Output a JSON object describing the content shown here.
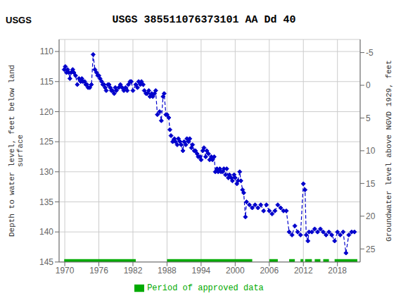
{
  "chart_data": {
    "type": "line",
    "title": "USGS 385511076373101 AA Dd  40",
    "annotations": [
      "USGS"
    ],
    "ylabel": "Depth to water level, feet below land\nsurface",
    "y2label": "Groundwater level above NGVD 1929, feet",
    "ylim": [
      145,
      108
    ],
    "yticks": [
      110,
      115,
      120,
      125,
      130,
      135,
      140,
      145
    ],
    "y2lim": [
      27,
      -7
    ],
    "y2ticks": [
      25,
      20,
      15,
      10,
      5,
      0,
      -5
    ],
    "xlim": [
      1969,
      2022
    ],
    "xticks": [
      1970,
      1976,
      1982,
      1988,
      1994,
      2000,
      2006,
      2012,
      2018
    ],
    "grid": true,
    "legend": "bottom",
    "series": [
      {
        "type": "line",
        "color": "#0000cc",
        "marker": "diamond",
        "line_style": "dashed",
        "x": [
          1969.9,
          1970.1,
          1970.3,
          1970.5,
          1970.7,
          1970.9,
          1971.1,
          1971.4,
          1971.6,
          1971.9,
          1972.2,
          1972.5,
          1972.8,
          1973.0,
          1973.2,
          1973.5,
          1973.7,
          1973.9,
          1974.1,
          1974.4,
          1974.7,
          1975.0,
          1975.3,
          1975.6,
          1975.8,
          1976.0,
          1976.2,
          1976.5,
          1976.7,
          1976.9,
          1977.1,
          1977.3,
          1977.6,
          1977.8,
          1978.0,
          1978.2,
          1978.4,
          1978.7,
          1978.9,
          1979.1,
          1979.5,
          1979.8,
          1980.1,
          1980.4,
          1980.7,
          1981.0,
          1981.2,
          1981.5,
          1981.7,
          1982.0,
          1982.5,
          1982.8,
          1983.0,
          1983.3,
          1983.5,
          1983.8,
          1984.0,
          1984.3,
          1984.5,
          1984.8,
          1985.0,
          1985.3,
          1985.5,
          1985.8,
          1986.0,
          1986.3,
          1986.7,
          1987.0,
          1987.3,
          1987.5,
          1987.8,
          1988.0,
          1988.3,
          1988.5,
          1988.7,
          1989.0,
          1989.3,
          1989.5,
          1989.8,
          1990.0,
          1990.3,
          1990.5,
          1990.8,
          1991.0,
          1991.3,
          1991.5,
          1991.8,
          1992.0,
          1992.3,
          1992.5,
          1992.8,
          1993.0,
          1993.3,
          1993.5,
          1993.8,
          1994.0,
          1994.3,
          1994.5,
          1994.8,
          1995.0,
          1995.3,
          1995.5,
          1995.8,
          1996.0,
          1996.3,
          1996.5,
          1996.8,
          1997.0,
          1997.3,
          1997.5,
          1997.8,
          1998.0,
          1998.3,
          1998.5,
          1998.8,
          1999.0,
          1999.3,
          1999.5,
          1999.8,
          2000.0,
          2000.3,
          2000.5,
          2000.8,
          2001.0,
          2001.3,
          2001.5,
          2001.8,
          2002.0,
          2002.5,
          2003.0,
          2003.5,
          2004.0,
          2004.5,
          2005.0,
          2005.5,
          2006.0,
          2006.5,
          2007.0,
          2007.5,
          2008.0,
          2008.5,
          2009.0,
          2009.5,
          2010.0,
          2010.5,
          2011.0,
          2011.5,
          2012.0,
          2012.3,
          2012.5,
          2012.8,
          2013.0,
          2013.5,
          2014.0,
          2014.5,
          2015.0,
          2015.5,
          2016.0,
          2016.5,
          2017.0,
          2017.5,
          2018.0,
          2018.5,
          2019.0,
          2019.5,
          2020.0,
          2020.5,
          2021.0
        ],
        "values": [
          113.0,
          112.5,
          113.5,
          113.0,
          113.5,
          114.5,
          113.5,
          113.0,
          113.5,
          114.0,
          115.5,
          114.5,
          115.0,
          114.5,
          115.0,
          115.0,
          115.5,
          115.5,
          116.0,
          116.0,
          115.5,
          110.5,
          113.0,
          113.5,
          114.0,
          114.0,
          114.5,
          115.0,
          115.5,
          115.5,
          116.0,
          116.5,
          115.5,
          115.5,
          116.0,
          116.5,
          116.5,
          117.0,
          116.0,
          116.5,
          116.0,
          115.5,
          116.0,
          116.5,
          116.0,
          116.5,
          115.5,
          115.0,
          115.0,
          116.5,
          115.5,
          116.0,
          115.0,
          115.5,
          115.0,
          115.5,
          116.5,
          117.0,
          117.0,
          116.5,
          117.5,
          117.0,
          117.5,
          117.0,
          116.5,
          120.5,
          120.0,
          121.5,
          117.5,
          117.0,
          120.5,
          120.5,
          121.0,
          123.0,
          124.0,
          125.0,
          124.5,
          125.0,
          125.5,
          124.5,
          125.0,
          125.5,
          126.5,
          125.0,
          125.5,
          124.5,
          125.0,
          124.5,
          126.0,
          125.5,
          126.5,
          126.5,
          127.0,
          127.5,
          127.5,
          128.0,
          126.5,
          126.0,
          127.5,
          126.5,
          127.0,
          128.0,
          127.5,
          128.0,
          127.5,
          130.0,
          129.5,
          130.0,
          129.5,
          130.0,
          130.0,
          129.5,
          130.5,
          129.5,
          131.0,
          130.5,
          131.0,
          131.5,
          130.5,
          131.0,
          132.0,
          131.5,
          130.0,
          131.5,
          133.0,
          133.5,
          137.5,
          135.0,
          135.5,
          136.0,
          135.5,
          136.0,
          135.5,
          136.5,
          135.5,
          136.5,
          137.0,
          136.5,
          135.5,
          136.0,
          136.5,
          136.5,
          140.0,
          140.5,
          139.0,
          140.0,
          140.5,
          132.0,
          133.0,
          140.5,
          141.5,
          140.0,
          140.0,
          139.5,
          140.0,
          139.5,
          140.0,
          140.5,
          140.0,
          140.5,
          141.5,
          140.0,
          140.5,
          140.0,
          143.5,
          140.5,
          140.0,
          140.0
        ]
      },
      {
        "name": "Period of approved data",
        "type": "bar",
        "color": "#00aa00",
        "y": 145.0,
        "segments": [
          [
            1969.9,
            1982.5
          ],
          [
            1988.0,
            2003.0
          ],
          [
            2006.0,
            2007.5
          ],
          [
            2009.5,
            2010.5
          ],
          [
            2011.5,
            2012.0
          ],
          [
            2012.3,
            2013.5
          ],
          [
            2014.0,
            2015.0
          ],
          [
            2015.5,
            2016.5
          ],
          [
            2017.5,
            2021.5
          ]
        ]
      }
    ]
  }
}
